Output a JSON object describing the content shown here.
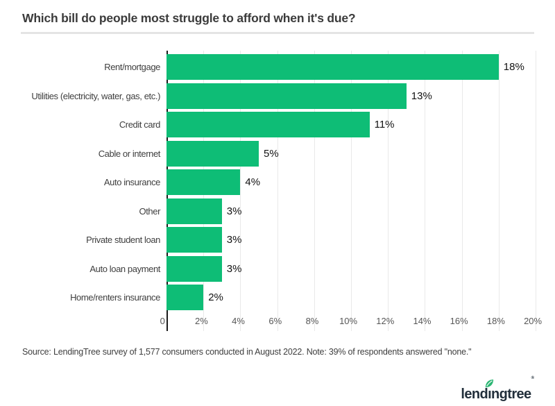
{
  "chart_data": {
    "type": "bar",
    "orientation": "horizontal",
    "title": "Which bill do people most struggle to afford when it's due?",
    "categories": [
      "Rent/mortgage",
      "Utilities (electricity, water, gas, etc.)",
      "Credit card",
      "Cable or internet",
      "Auto insurance",
      "Other",
      "Private student loan",
      "Auto loan payment",
      "Home/renters insurance"
    ],
    "values": [
      18,
      13,
      11,
      5,
      4,
      3,
      3,
      3,
      2
    ],
    "value_labels": [
      "18%",
      "13%",
      "11%",
      "5%",
      "4%",
      "3%",
      "3%",
      "3%",
      "2%"
    ],
    "xlabel": "",
    "ylabel": "",
    "xlim": [
      0,
      20
    ],
    "x_ticks": [
      {
        "value": 0,
        "label": "0"
      },
      {
        "value": 2,
        "label": "2%"
      },
      {
        "value": 4,
        "label": "4%"
      },
      {
        "value": 6,
        "label": "6%"
      },
      {
        "value": 8,
        "label": "8%"
      },
      {
        "value": 10,
        "label": "10%"
      },
      {
        "value": 12,
        "label": "12%"
      },
      {
        "value": 14,
        "label": "14%"
      },
      {
        "value": 16,
        "label": "16%"
      },
      {
        "value": 18,
        "label": "18%"
      },
      {
        "value": 20,
        "label": "20%"
      }
    ],
    "grid": true,
    "legend": false,
    "bar_color": "#0ebd76"
  },
  "footer": {
    "source_text": "Source: LendingTree survey of 1,577 consumers conducted in August 2022. Note: 39% of respondents answered \"none.\"",
    "logo_text": "lendingtree",
    "logo_mark": "®"
  },
  "colors": {
    "bar_green": "#0ebd76",
    "leaf_green": "#2bb673",
    "logo_navy": "#222f3b",
    "title_gray": "#3b3b3b",
    "gridline_gray": "#e9e9e9",
    "axis_black": "#1a1a1a"
  }
}
